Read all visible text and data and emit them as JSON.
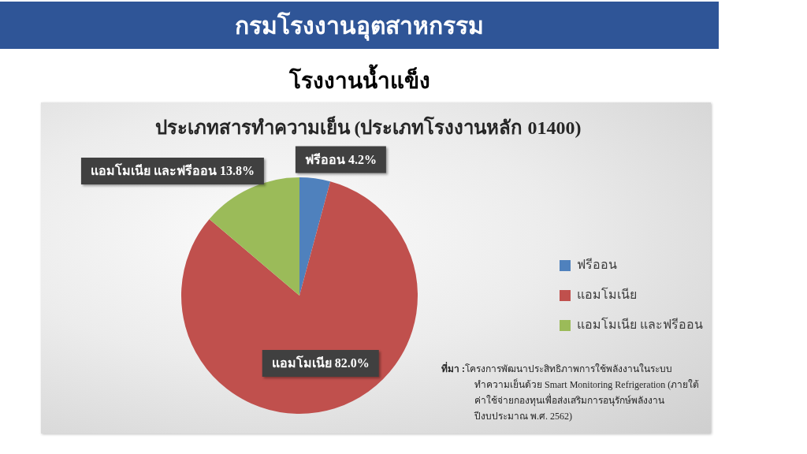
{
  "chart_data": {
    "type": "pie",
    "title": "โรงงานน้ำแข็ง",
    "subtitle": "ประเภทสารทำความเย็น (ประเภทโรงงานหลัก 01400)",
    "categories": [
      "ฟรีออน",
      "แอมโมเนีย",
      "แอมโมเนีย และฟรีออน"
    ],
    "values": [
      4.2,
      82.0,
      13.8
    ],
    "colors": [
      "#4f81bd",
      "#c0504d",
      "#9bbb59"
    ],
    "value_labels": [
      "ฟรีออน 4.2%",
      "แอมโมเนีย 82.0%",
      "แอมโมเนีย และฟรีออน 13.8%"
    ],
    "legend": "right",
    "annotations": [
      "กรมโรงงานอุตสาหกรรม",
      "ที่มา :โครงการพัฒนาประสิทธิภาพการใช้พลังงานในระบบทำความเย็นด้วย Smart Monitoring Refrigeration (ภายใต้ค่าใช้จ่ายกองทุนเพื่อส่งเสริมการอนุรักษ์พลังงาน ปีงบประมาณ พ.ศ. 2562)"
    ]
  }
}
